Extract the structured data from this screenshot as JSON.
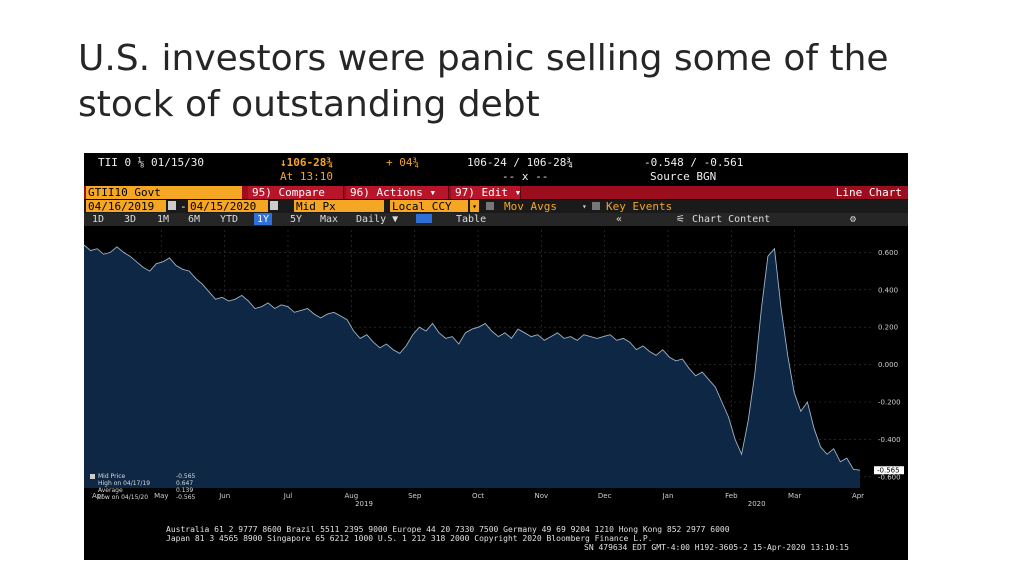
{
  "slide": {
    "title": "U.S. investors were panic selling some of the stock of outstanding debt"
  },
  "quote": {
    "security": "TII 0 ⅛ 01/15/30",
    "price": "↓106-28¾",
    "change": "+ 04¾",
    "bid_ask": "106-24 / 106-28¾",
    "yields": "-0.548 / -0.561",
    "time": "At 13:10",
    "volume": "-- x --",
    "source": "Source BGN"
  },
  "menu": {
    "ticker": "GTII10 Govt",
    "compare": "95) Compare",
    "actions": "96) Actions ▾",
    "edit": "97) Edit ▾",
    "chart_type": "Line Chart"
  },
  "controls": {
    "start_date": "04/16/2019",
    "end_date": "04/15/2020",
    "field": "Mid Px",
    "currency": "Local CCY",
    "mov_avgs": "Mov Avgs",
    "key_events": "Key Events"
  },
  "tabs": {
    "ranges": [
      "1D",
      "3D",
      "1M",
      "6M",
      "YTD",
      "1Y",
      "5Y",
      "Max"
    ],
    "active": "1Y",
    "period": "Daily ▼",
    "table": "Table",
    "collapse": "«",
    "chart_content": "Chart Content",
    "settings_icon": "gear-icon"
  },
  "legend": {
    "mid_price_label": "Mid Price",
    "mid_price_value": "-0.565",
    "high_label": "High on 04/17/19",
    "high_value": "0.647",
    "avg_label": "Average",
    "avg_value": "0.139",
    "low_label": "Low on 04/15/20",
    "low_value": "-0.565"
  },
  "chart_data": {
    "type": "area",
    "title": "",
    "xlabel": "",
    "ylabel": "",
    "ylim": [
      -0.66,
      0.72
    ],
    "y_ticks": [
      "0.600",
      "0.400",
      "0.200",
      "0.000",
      "-0.200",
      "-0.400",
      "-0.600"
    ],
    "y_tick_values": [
      0.6,
      0.4,
      0.2,
      0.0,
      -0.2,
      -0.4,
      -0.6
    ],
    "last_value_label": "-0.565",
    "x_month_labels": [
      "Apr",
      "May",
      "Jun",
      "Jul",
      "Aug",
      "Sep",
      "Oct",
      "Nov",
      "Dec",
      "Jan",
      "Feb",
      "Mar",
      "Apr"
    ],
    "x_year_labels": [
      "2019",
      "2020"
    ],
    "series": [
      {
        "values": [
          0.64,
          0.61,
          0.62,
          0.59,
          0.6,
          0.63,
          0.6,
          0.58,
          0.55,
          0.52,
          0.5,
          0.54,
          0.55,
          0.57,
          0.53,
          0.51,
          0.5,
          0.46,
          0.43,
          0.39,
          0.35,
          0.36,
          0.34,
          0.35,
          0.37,
          0.34,
          0.3,
          0.31,
          0.33,
          0.3,
          0.32,
          0.31,
          0.28,
          0.29,
          0.3,
          0.27,
          0.25,
          0.27,
          0.28,
          0.26,
          0.24,
          0.18,
          0.14,
          0.16,
          0.12,
          0.09,
          0.11,
          0.08,
          0.06,
          0.1,
          0.16,
          0.2,
          0.18,
          0.22,
          0.17,
          0.14,
          0.15,
          0.11,
          0.17,
          0.19,
          0.2,
          0.22,
          0.18,
          0.15,
          0.17,
          0.14,
          0.19,
          0.17,
          0.15,
          0.16,
          0.13,
          0.15,
          0.17,
          0.14,
          0.15,
          0.13,
          0.16,
          0.15,
          0.14,
          0.15,
          0.16,
          0.13,
          0.14,
          0.12,
          0.08,
          0.1,
          0.07,
          0.05,
          0.08,
          0.04,
          0.02,
          0.03,
          -0.02,
          -0.06,
          -0.04,
          -0.08,
          -0.12,
          -0.2,
          -0.28,
          -0.4,
          -0.48,
          -0.3,
          -0.05,
          0.3,
          0.58,
          0.62,
          0.3,
          0.05,
          -0.15,
          -0.25,
          -0.2,
          -0.34,
          -0.44,
          -0.48,
          -0.45,
          -0.52,
          -0.5,
          -0.56,
          -0.565
        ]
      }
    ]
  },
  "footer": {
    "line1": "Australia 61 2 9777 8600 Brazil 5511 2395 9000 Europe 44 20 7330 7500 Germany 49 69 9204 1210 Hong Kong 852 2977 6000",
    "line2": "Japan 81 3 4565 8900        Singapore 65 6212 1000       U.S. 1 212 318 2000          Copyright 2020 Bloomberg Finance L.P.",
    "line3": "SN 479634 EDT  GMT-4:00 H192-3605-2 15-Apr-2020 13:10:15"
  },
  "colors": {
    "area_fill": "#0d2744",
    "area_line": "#9fb3c8",
    "accent": "#f5a623",
    "menu_red": "#b8142a"
  }
}
